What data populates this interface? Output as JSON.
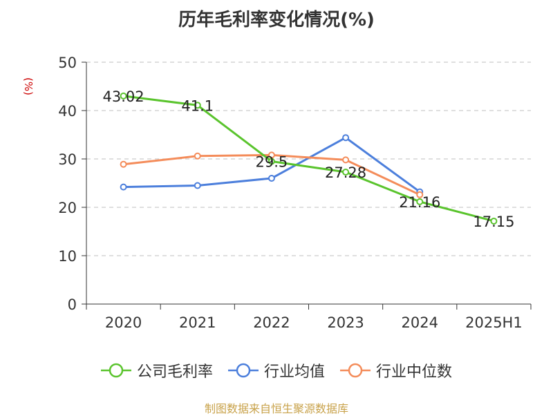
{
  "chart_data": {
    "type": "line",
    "title": "历年毛利率变化情况(%)",
    "ylabel": "(%)",
    "xlabel": "",
    "categories": [
      "2020",
      "2021",
      "2022",
      "2023",
      "2024",
      "2025H1"
    ],
    "ylim": [
      0,
      50
    ],
    "yticks": [
      0,
      10,
      20,
      30,
      40,
      50
    ],
    "grid": true,
    "legend_position": "bottom",
    "series": [
      {
        "name": "公司毛利率",
        "color": "#5ac42d",
        "values": [
          43.02,
          41.1,
          29.5,
          27.28,
          21.16,
          17.15
        ],
        "labels": [
          "43.02",
          "41.1",
          "29.5",
          "27.28",
          "21.16",
          "17.15"
        ]
      },
      {
        "name": "行业均值",
        "color": "#4c7fdc",
        "values": [
          24.2,
          24.5,
          26.0,
          34.4,
          23.2,
          null
        ]
      },
      {
        "name": "行业中位数",
        "color": "#f48c5a",
        "values": [
          28.9,
          30.6,
          30.8,
          29.8,
          22.6,
          null
        ]
      }
    ]
  },
  "source": "制图数据来自恒生聚源数据库"
}
